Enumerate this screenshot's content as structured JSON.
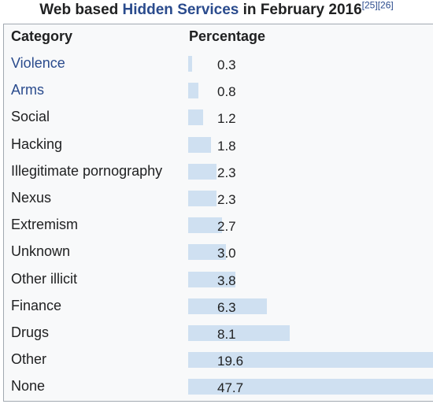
{
  "caption": {
    "prefix": "Web based ",
    "link_text": "Hidden Services",
    "suffix": " in February 2016",
    "refs": "[25][26]"
  },
  "headers": {
    "category": "Category",
    "percentage": "Percentage"
  },
  "colors": {
    "link": "#2a4b8d",
    "bar": "#cfe0f1",
    "text": "#202122"
  },
  "chart_data": {
    "type": "bar",
    "orientation": "horizontal",
    "title": "Web based Hidden Services in February 2016",
    "categories": [
      "Violence",
      "Arms",
      "Social",
      "Hacking",
      "Illegitimate pornography",
      "Nexus",
      "Extremism",
      "Unknown",
      "Other illicit",
      "Finance",
      "Drugs",
      "Other",
      "None"
    ],
    "value_labels": [
      "0.3",
      "0.8",
      "1.2",
      "1.8",
      "2.3",
      "2.3",
      "2.7",
      "3.0",
      "3.8",
      "6.3",
      "8.1",
      "19.6",
      "47.7"
    ],
    "values": [
      0.3,
      0.8,
      1.2,
      1.8,
      2.3,
      2.3,
      2.7,
      3.0,
      3.8,
      6.3,
      8.1,
      19.6,
      47.7
    ],
    "linked_categories": [
      "Violence",
      "Arms"
    ],
    "xlim": [
      0,
      19.6
    ],
    "grid": false,
    "legend": "none"
  }
}
